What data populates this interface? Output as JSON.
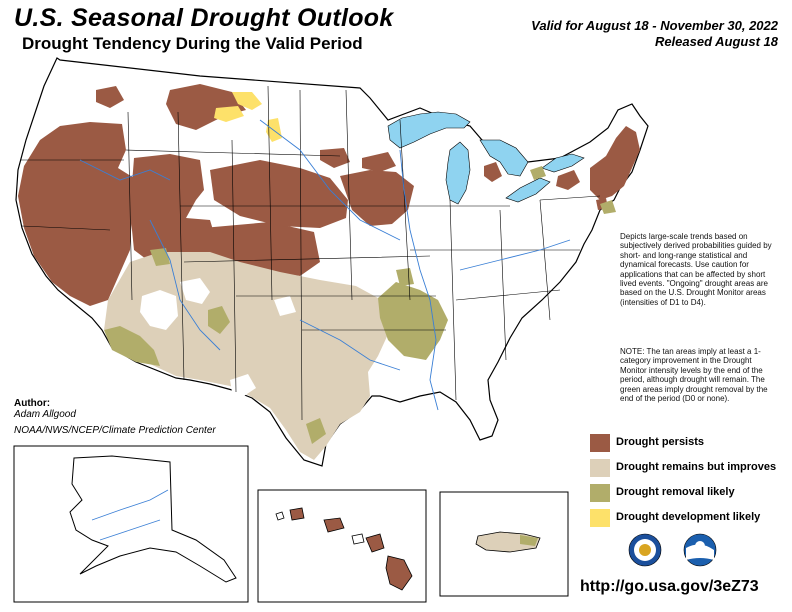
{
  "header": {
    "title": "U.S. Seasonal Drought Outlook",
    "subtitle": "Drought Tendency During the Valid Period",
    "valid": "Valid for August 18 - November 30, 2022",
    "released": "Released August 18"
  },
  "description": "Depicts large-scale trends based on subjectively derived probabilities guided by short- and long-range statistical and dynamical forecasts. Use caution for applications that can be affected by short lived events. \"Ongoing\" drought areas are based on the U.S. Drought Monitor areas (intensities of D1 to D4).",
  "note": "NOTE: The tan areas imply at least a 1-category improvement in the Drought Monitor intensity levels by the end of the period, although drought will remain. The green areas imply drought removal by the end of the period (D0 or none).",
  "author": {
    "heading": "Author:",
    "name": "Adam Allgood",
    "org": "NOAA/NWS/NCEP/Climate Prediction Center"
  },
  "legend": [
    {
      "label": "Drought persists",
      "color": "#9b5a44"
    },
    {
      "label": "Drought remains but improves",
      "color": "#ddd0b9"
    },
    {
      "label": "Drought removal likely",
      "color": "#b1ad6a"
    },
    {
      "label": "Drought development likely",
      "color": "#fde16a"
    }
  ],
  "colors": {
    "water": "#8fd3f0",
    "rivers": "#3a7fd5",
    "borders": "#000000"
  },
  "logos": [
    "noaa-seal-logo",
    "nws-logo"
  ],
  "url": "http://go.usa.gov/3eZ73"
}
